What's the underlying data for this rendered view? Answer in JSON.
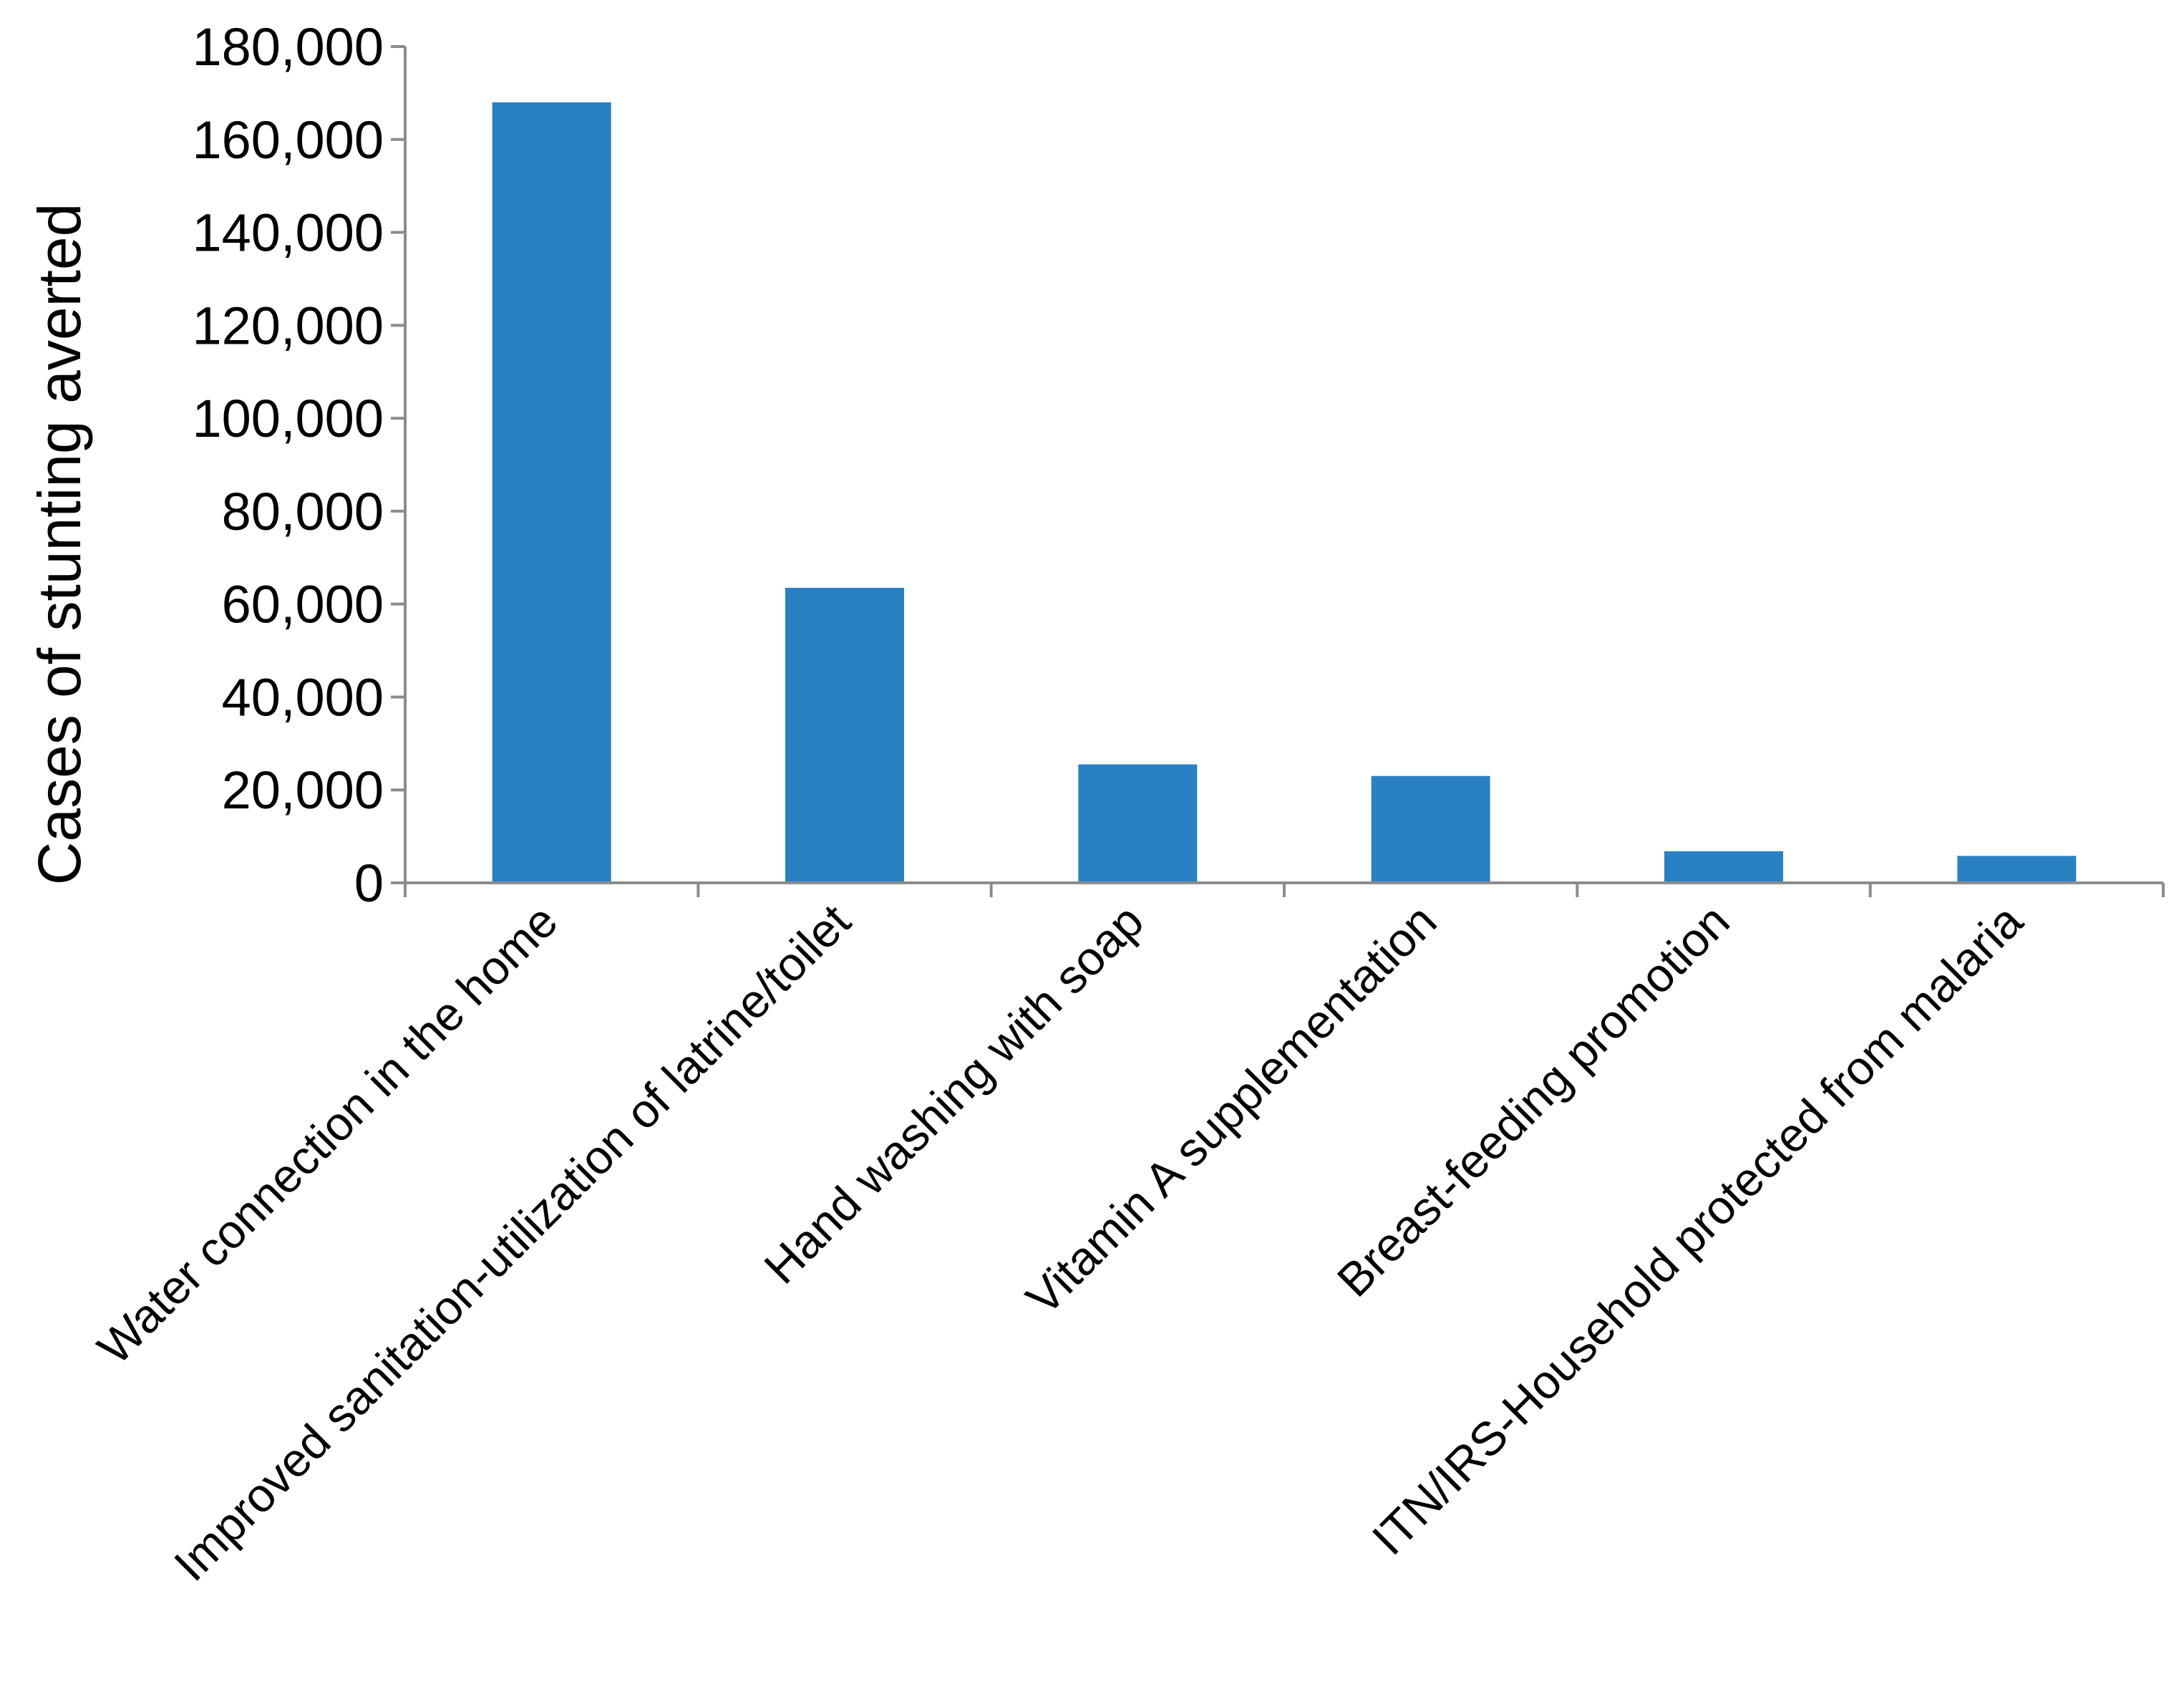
{
  "chart_data": {
    "type": "bar",
    "title": "",
    "xlabel": "",
    "ylabel": "Cases of stunting  averted",
    "categories": [
      "Water connection in the home",
      "Improved sanitation-utilization of latrine/toilet",
      "Hand washing with soap",
      "Vitamin A supplementation",
      "Breast-feeding promotion",
      "ITN/IRS-Household protected from malaria"
    ],
    "values": [
      168000,
      63500,
      25500,
      23000,
      6800,
      5800
    ],
    "ylim": [
      0,
      180000
    ],
    "yticks": [
      "0",
      "20,000",
      "40,000",
      "60,000",
      "80,000",
      "100,000",
      "120,000",
      "140,000",
      "160,000",
      "180,000"
    ],
    "bar_color": "#2981c3",
    "axis_color": "#8c8c8c",
    "grid": false,
    "legend": "none"
  }
}
